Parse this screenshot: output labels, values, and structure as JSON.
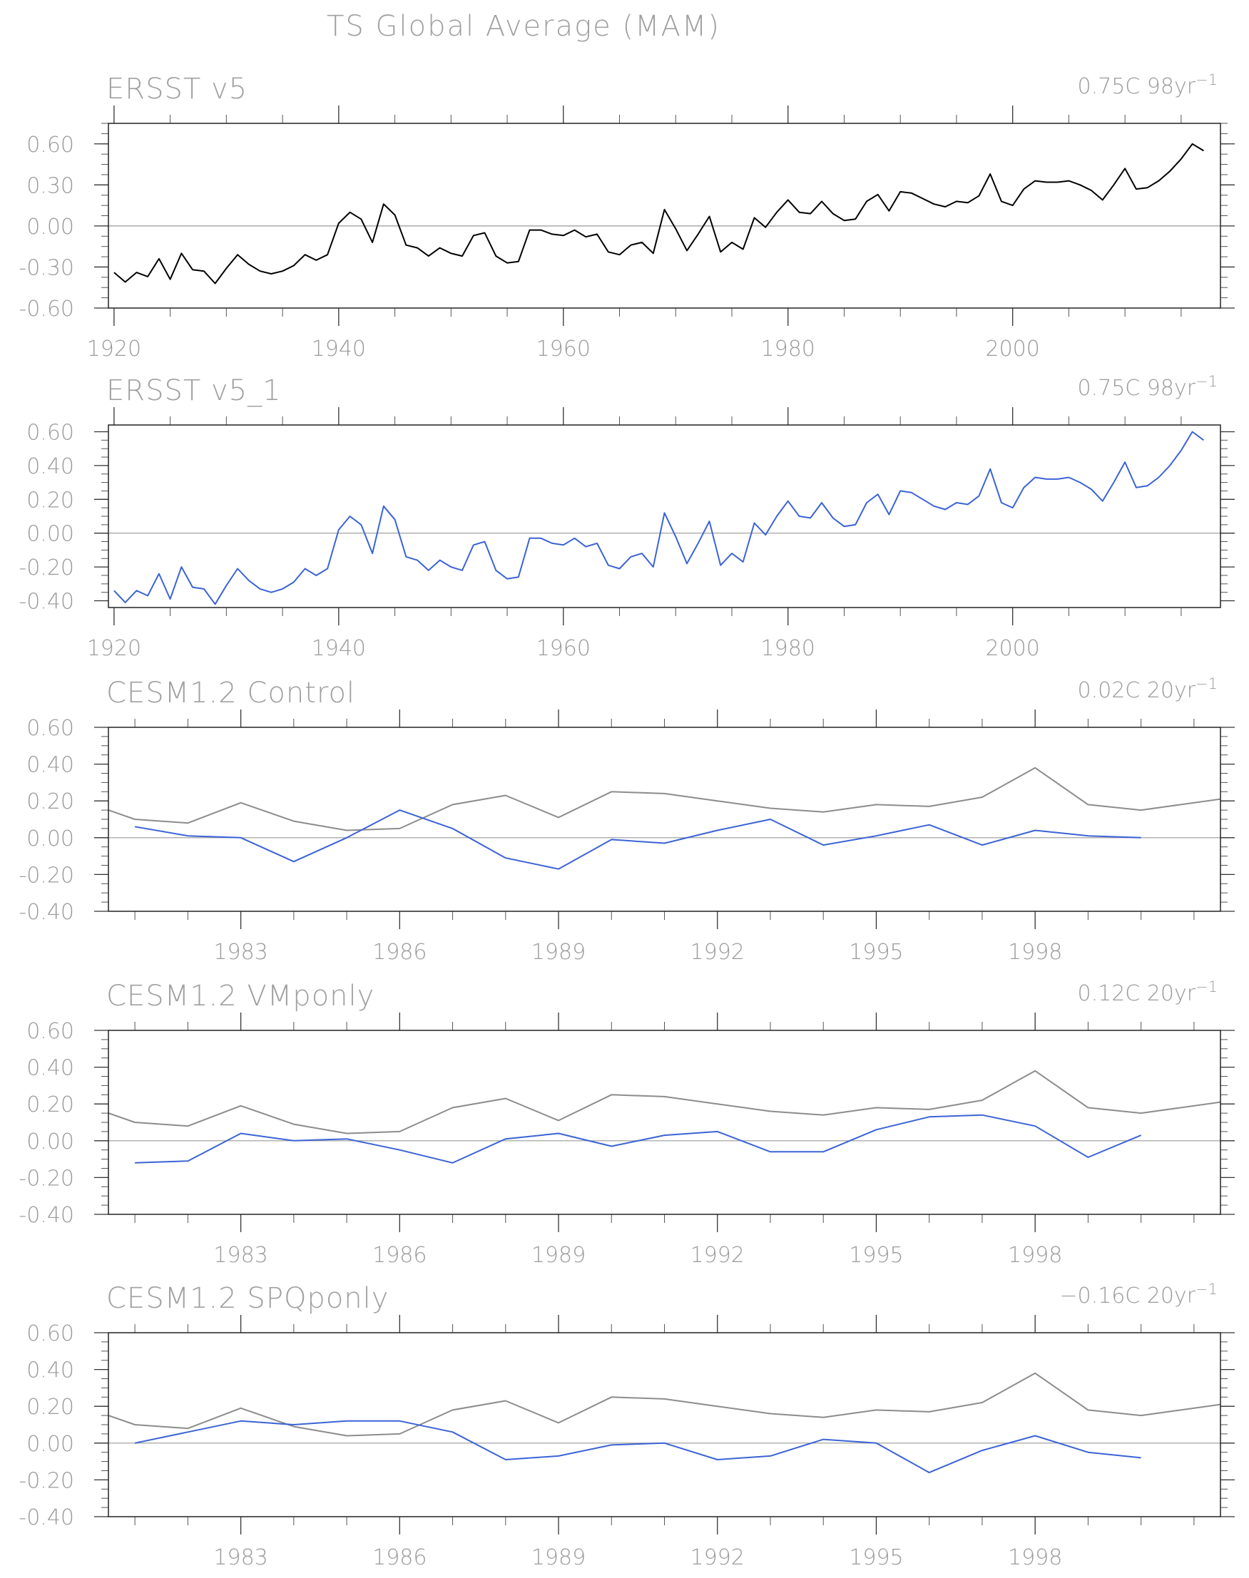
{
  "figure": {
    "title": "TS Global Average (MAM)"
  },
  "chart_data": [
    {
      "type": "line",
      "title": "ERSST v5",
      "trend_label": "0.75C 98yr",
      "trend_superscript": "−1",
      "xlim": [
        1919.5,
        2018.5
      ],
      "xticks_major": [
        1920,
        1940,
        1960,
        1980,
        2000
      ],
      "xticks_labels": [
        "1920",
        "1940",
        "1960",
        "1980",
        "2000"
      ],
      "xticks_minor_step": 5,
      "ylim": [
        -0.6,
        0.75
      ],
      "yticks": [
        -0.6,
        -0.3,
        0.0,
        0.3,
        0.6
      ],
      "ytick_labels": [
        "-0.60",
        "-0.30",
        "0.00",
        "0.30",
        "0.60"
      ],
      "yticks_minor_step": 0.075,
      "zero_line": true,
      "series": [
        {
          "color": "#000000",
          "x_start": 1920,
          "values": [
            -0.34,
            -0.41,
            -0.34,
            -0.37,
            -0.24,
            -0.39,
            -0.2,
            -0.32,
            -0.33,
            -0.42,
            -0.31,
            -0.21,
            -0.28,
            -0.33,
            -0.35,
            -0.33,
            -0.29,
            -0.21,
            -0.25,
            -0.21,
            0.02,
            0.1,
            0.05,
            -0.12,
            0.16,
            0.08,
            -0.14,
            -0.16,
            -0.22,
            -0.16,
            -0.2,
            -0.22,
            -0.07,
            -0.05,
            -0.22,
            -0.27,
            -0.26,
            -0.03,
            -0.03,
            -0.06,
            -0.07,
            -0.03,
            -0.08,
            -0.06,
            -0.19,
            -0.21,
            -0.14,
            -0.12,
            -0.2,
            0.12,
            -0.02,
            -0.18,
            -0.06,
            0.07,
            -0.19,
            -0.12,
            -0.17,
            0.06,
            -0.01,
            0.1,
            0.19,
            0.1,
            0.09,
            0.18,
            0.09,
            0.04,
            0.05,
            0.18,
            0.23,
            0.11,
            0.25,
            0.24,
            0.2,
            0.16,
            0.14,
            0.18,
            0.17,
            0.22,
            0.38,
            0.18,
            0.15,
            0.27,
            0.33,
            0.32,
            0.32,
            0.33,
            0.3,
            0.26,
            0.19,
            0.3,
            0.42,
            0.27,
            0.28,
            0.33,
            0.4,
            0.49,
            0.6,
            0.55
          ]
        }
      ]
    },
    {
      "type": "line",
      "title": "ERSST v5_1",
      "trend_label": "0.75C 98yr",
      "trend_superscript": "−1",
      "xlim": [
        1919.5,
        2018.5
      ],
      "xticks_major": [
        1920,
        1940,
        1960,
        1980,
        2000
      ],
      "xticks_labels": [
        "1920",
        "1940",
        "1960",
        "1980",
        "2000"
      ],
      "xticks_minor_step": 5,
      "ylim": [
        -0.44,
        0.64
      ],
      "yticks": [
        -0.4,
        -0.2,
        0.0,
        0.2,
        0.4,
        0.6
      ],
      "ytick_labels": [
        "-0.40",
        "-0.20",
        "0.00",
        "0.20",
        "0.40",
        "0.60"
      ],
      "yticks_minor_step": 0.05,
      "zero_line": true,
      "series": [
        {
          "color": "#3b63d6",
          "x_start": 1920,
          "values": [
            -0.34,
            -0.41,
            -0.34,
            -0.37,
            -0.24,
            -0.39,
            -0.2,
            -0.32,
            -0.33,
            -0.42,
            -0.31,
            -0.21,
            -0.28,
            -0.33,
            -0.35,
            -0.33,
            -0.29,
            -0.21,
            -0.25,
            -0.21,
            0.02,
            0.1,
            0.05,
            -0.12,
            0.16,
            0.08,
            -0.14,
            -0.16,
            -0.22,
            -0.16,
            -0.2,
            -0.22,
            -0.07,
            -0.05,
            -0.22,
            -0.27,
            -0.26,
            -0.03,
            -0.03,
            -0.06,
            -0.07,
            -0.03,
            -0.08,
            -0.06,
            -0.19,
            -0.21,
            -0.14,
            -0.12,
            -0.2,
            0.12,
            -0.02,
            -0.18,
            -0.06,
            0.07,
            -0.19,
            -0.12,
            -0.17,
            0.06,
            -0.01,
            0.1,
            0.19,
            0.1,
            0.09,
            0.18,
            0.09,
            0.04,
            0.05,
            0.18,
            0.23,
            0.11,
            0.25,
            0.24,
            0.2,
            0.16,
            0.14,
            0.18,
            0.17,
            0.22,
            0.38,
            0.18,
            0.15,
            0.27,
            0.33,
            0.32,
            0.32,
            0.33,
            0.3,
            0.26,
            0.19,
            0.3,
            0.42,
            0.27,
            0.28,
            0.33,
            0.4,
            0.49,
            0.6,
            0.55
          ]
        }
      ]
    },
    {
      "type": "line",
      "title": "CESM1.2 Control",
      "trend_label": "0.02C 20yr",
      "trend_superscript": "−1",
      "xlim": [
        1980.5,
        2001.5
      ],
      "xticks_major": [
        1983,
        1986,
        1989,
        1992,
        1995,
        1998
      ],
      "xticks_labels": [
        "1983",
        "1986",
        "1989",
        "1992",
        "1995",
        "1998"
      ],
      "xticks_minor_step": 1,
      "ylim": [
        -0.4,
        0.6
      ],
      "yticks": [
        -0.4,
        -0.2,
        0.0,
        0.2,
        0.4,
        0.6
      ],
      "ytick_labels": [
        "-0.40",
        "-0.20",
        "0.00",
        "0.20",
        "0.40",
        "0.60"
      ],
      "yticks_minor_step": 0.05,
      "zero_line": true,
      "series": [
        {
          "color": "#8c8c8c",
          "x": [
            1980.5,
            1981,
            1982,
            1983,
            1984,
            1985,
            1986,
            1987,
            1988,
            1989,
            1990,
            1991,
            1992,
            1993,
            1994,
            1995,
            1996,
            1997,
            1998,
            1999,
            2000,
            2001.5
          ],
          "values": [
            0.15,
            0.1,
            0.08,
            0.19,
            0.09,
            0.04,
            0.05,
            0.18,
            0.23,
            0.11,
            0.25,
            0.24,
            0.2,
            0.16,
            0.14,
            0.18,
            0.17,
            0.22,
            0.38,
            0.18,
            0.15,
            0.21
          ]
        },
        {
          "color": "#3b63d6",
          "x": [
            1981,
            1982,
            1983,
            1984,
            1985,
            1986,
            1987,
            1988,
            1989,
            1990,
            1991,
            1992,
            1993,
            1994,
            1995,
            1996,
            1997,
            1998,
            1999,
            2000
          ],
          "values": [
            0.06,
            0.01,
            0.0,
            -0.13,
            0.0,
            0.15,
            0.05,
            -0.11,
            -0.17,
            -0.01,
            -0.03,
            0.04,
            0.1,
            -0.04,
            0.01,
            0.07,
            -0.04,
            0.04,
            0.01,
            0.0
          ]
        }
      ]
    },
    {
      "type": "line",
      "title": "CESM1.2 VMponly",
      "trend_label": "0.12C 20yr",
      "trend_superscript": "−1",
      "xlim": [
        1980.5,
        2001.5
      ],
      "xticks_major": [
        1983,
        1986,
        1989,
        1992,
        1995,
        1998
      ],
      "xticks_labels": [
        "1983",
        "1986",
        "1989",
        "1992",
        "1995",
        "1998"
      ],
      "xticks_minor_step": 1,
      "ylim": [
        -0.4,
        0.6
      ],
      "yticks": [
        -0.4,
        -0.2,
        0.0,
        0.2,
        0.4,
        0.6
      ],
      "ytick_labels": [
        "-0.40",
        "-0.20",
        "0.00",
        "0.20",
        "0.40",
        "0.60"
      ],
      "yticks_minor_step": 0.05,
      "zero_line": true,
      "series": [
        {
          "color": "#8c8c8c",
          "x": [
            1980.5,
            1981,
            1982,
            1983,
            1984,
            1985,
            1986,
            1987,
            1988,
            1989,
            1990,
            1991,
            1992,
            1993,
            1994,
            1995,
            1996,
            1997,
            1998,
            1999,
            2000,
            2001.5
          ],
          "values": [
            0.15,
            0.1,
            0.08,
            0.19,
            0.09,
            0.04,
            0.05,
            0.18,
            0.23,
            0.11,
            0.25,
            0.24,
            0.2,
            0.16,
            0.14,
            0.18,
            0.17,
            0.22,
            0.38,
            0.18,
            0.15,
            0.21
          ]
        },
        {
          "color": "#3b63d6",
          "x": [
            1981,
            1982,
            1983,
            1984,
            1985,
            1986,
            1987,
            1988,
            1989,
            1990,
            1991,
            1992,
            1993,
            1994,
            1995,
            1996,
            1997,
            1998,
            1999,
            2000
          ],
          "values": [
            -0.12,
            -0.11,
            0.04,
            0.0,
            0.01,
            -0.05,
            -0.12,
            0.01,
            0.04,
            -0.03,
            0.03,
            0.05,
            -0.06,
            -0.06,
            0.06,
            0.13,
            0.14,
            0.08,
            -0.09,
            0.03
          ]
        }
      ]
    },
    {
      "type": "line",
      "title": "CESM1.2 SPQponly",
      "trend_label": "−0.16C 20yr",
      "trend_superscript": "−1",
      "xlim": [
        1980.5,
        2001.5
      ],
      "xticks_major": [
        1983,
        1986,
        1989,
        1992,
        1995,
        1998
      ],
      "xticks_labels": [
        "1983",
        "1986",
        "1989",
        "1992",
        "1995",
        "1998"
      ],
      "xticks_minor_step": 1,
      "ylim": [
        -0.4,
        0.6
      ],
      "yticks": [
        -0.4,
        -0.2,
        0.0,
        0.2,
        0.4,
        0.6
      ],
      "ytick_labels": [
        "-0.40",
        "-0.20",
        "0.00",
        "0.20",
        "0.40",
        "0.60"
      ],
      "yticks_minor_step": 0.05,
      "zero_line": true,
      "series": [
        {
          "color": "#8c8c8c",
          "x": [
            1980.5,
            1981,
            1982,
            1983,
            1984,
            1985,
            1986,
            1987,
            1988,
            1989,
            1990,
            1991,
            1992,
            1993,
            1994,
            1995,
            1996,
            1997,
            1998,
            1999,
            2000,
            2001.5
          ],
          "values": [
            0.15,
            0.1,
            0.08,
            0.19,
            0.09,
            0.04,
            0.05,
            0.18,
            0.23,
            0.11,
            0.25,
            0.24,
            0.2,
            0.16,
            0.14,
            0.18,
            0.17,
            0.22,
            0.38,
            0.18,
            0.15,
            0.21
          ]
        },
        {
          "color": "#3b63d6",
          "x": [
            1981,
            1982,
            1983,
            1984,
            1985,
            1986,
            1987,
            1988,
            1989,
            1990,
            1991,
            1992,
            1993,
            1994,
            1995,
            1996,
            1997,
            1998,
            1999,
            2000
          ],
          "values": [
            0.0,
            0.06,
            0.12,
            0.1,
            0.12,
            0.12,
            0.06,
            -0.09,
            -0.07,
            -0.01,
            0.0,
            -0.09,
            -0.07,
            0.02,
            0.0,
            -0.16,
            -0.04,
            0.04,
            -0.05,
            -0.08
          ]
        }
      ]
    }
  ]
}
